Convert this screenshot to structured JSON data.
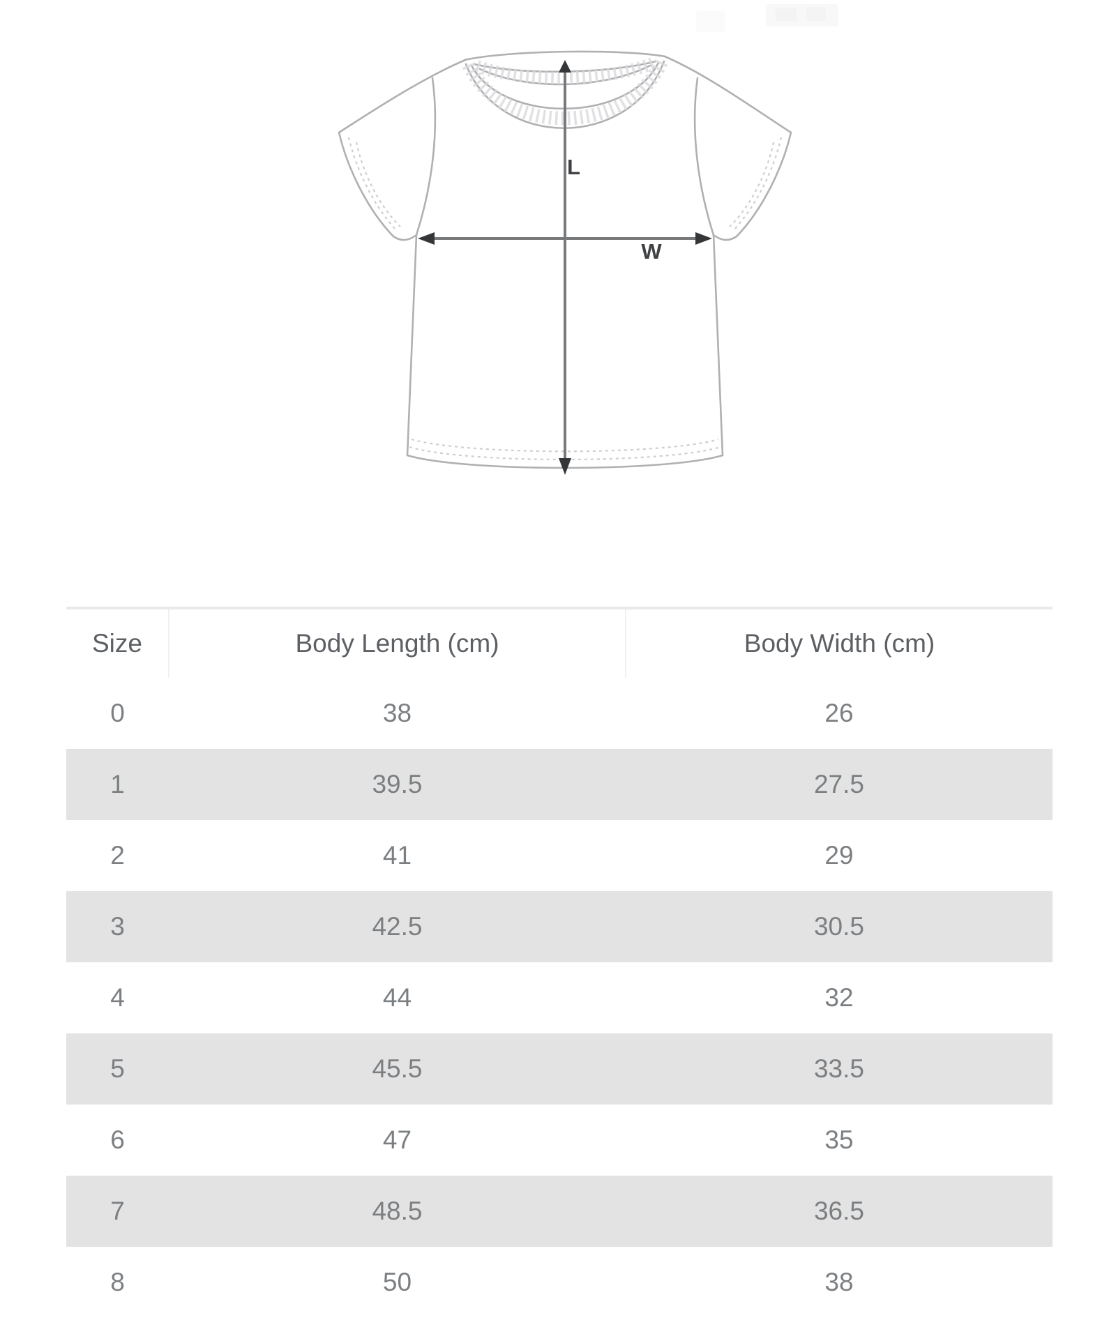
{
  "diagram": {
    "length_label": "L",
    "width_label": "W"
  },
  "size_chart": {
    "columns": [
      "Size",
      "Body Length (cm)",
      "Body Width (cm)"
    ],
    "rows": [
      {
        "size": "0",
        "body_length": "38",
        "body_width": "26"
      },
      {
        "size": "1",
        "body_length": "39.5",
        "body_width": "27.5"
      },
      {
        "size": "2",
        "body_length": "41",
        "body_width": "29"
      },
      {
        "size": "3",
        "body_length": "42.5",
        "body_width": "30.5"
      },
      {
        "size": "4",
        "body_length": "44",
        "body_width": "32"
      },
      {
        "size": "5",
        "body_length": "45.5",
        "body_width": "33.5"
      },
      {
        "size": "6",
        "body_length": "47",
        "body_width": "35"
      },
      {
        "size": "7",
        "body_length": "48.5",
        "body_width": "36.5"
      },
      {
        "size": "8",
        "body_length": "50",
        "body_width": "38"
      }
    ]
  },
  "chart_data": {
    "type": "table",
    "columns": [
      "Size",
      "Body Length (cm)",
      "Body Width (cm)"
    ],
    "rows": [
      [
        "0",
        "38",
        "26"
      ],
      [
        "1",
        "39.5",
        "27.5"
      ],
      [
        "2",
        "41",
        "29"
      ],
      [
        "3",
        "42.5",
        "30.5"
      ],
      [
        "4",
        "44",
        "32"
      ],
      [
        "5",
        "45.5",
        "33.5"
      ],
      [
        "6",
        "47",
        "35"
      ],
      [
        "7",
        "48.5",
        "36.5"
      ],
      [
        "8",
        "50",
        "38"
      ]
    ]
  },
  "colors": {
    "stripe": "#e3e3e3",
    "header_text": "#5c5f63",
    "cell_text": "#7c7f82",
    "top_border": "#e9e9e9",
    "divider": "#f0f0f0",
    "outline": "#aeb0b2",
    "stitch": "#cdced0",
    "rib": "#d9dadc",
    "arrow_line": "#77797b",
    "arrow_solid": "#353638",
    "label_text": "#404144"
  }
}
